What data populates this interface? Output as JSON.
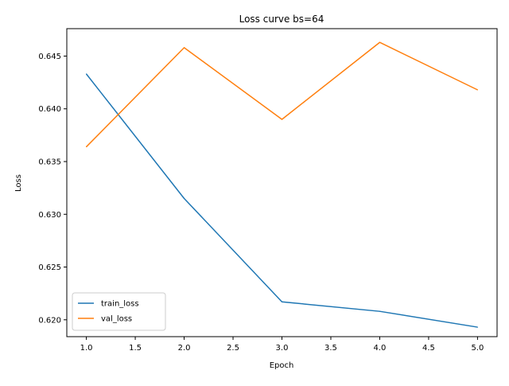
{
  "chart_data": {
    "type": "line",
    "title": "Loss curve bs=64",
    "xlabel": "Epoch",
    "ylabel": "Loss",
    "x": [
      1.0,
      2.0,
      3.0,
      4.0,
      5.0
    ],
    "xlim": [
      0.8,
      5.2
    ],
    "ylim": [
      0.6184,
      0.6476
    ],
    "xticks": [
      1.0,
      1.5,
      2.0,
      2.5,
      3.0,
      3.5,
      4.0,
      4.5,
      5.0
    ],
    "xtick_labels": [
      "1.0",
      "1.5",
      "2.0",
      "2.5",
      "3.0",
      "3.5",
      "4.0",
      "4.5",
      "5.0"
    ],
    "yticks": [
      0.62,
      0.625,
      0.63,
      0.635,
      0.64,
      0.645
    ],
    "ytick_labels": [
      "0.620",
      "0.625",
      "0.630",
      "0.635",
      "0.640",
      "0.645"
    ],
    "grid": false,
    "legend_position": "lower-left",
    "series": [
      {
        "name": "train_loss",
        "color": "#1f77b4",
        "values": [
          0.6433,
          0.6315,
          0.6217,
          0.6208,
          0.6193
        ]
      },
      {
        "name": "val_loss",
        "color": "#ff7f0e",
        "values": [
          0.6364,
          0.6458,
          0.639,
          0.6463,
          0.6418
        ]
      }
    ]
  }
}
